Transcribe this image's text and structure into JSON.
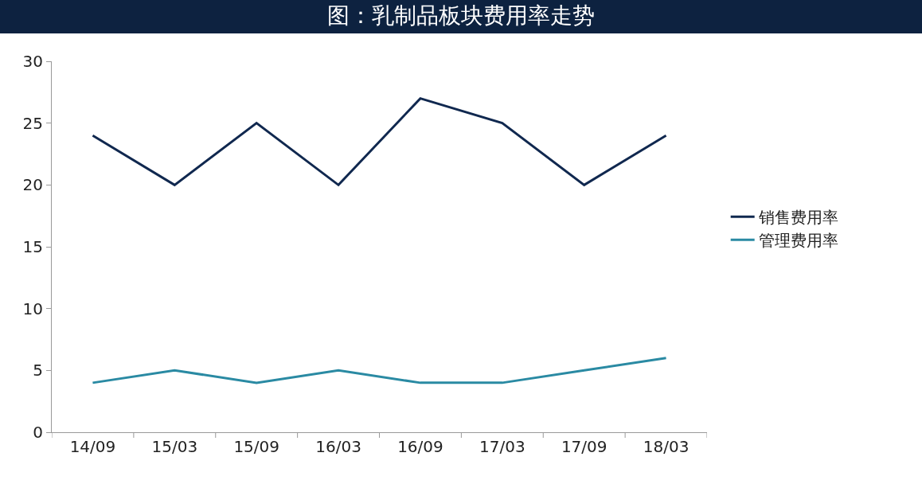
{
  "chart_data": {
    "type": "line",
    "title": "图：乳制品板块费用率走势",
    "categories": [
      "14/09",
      "15/03",
      "15/09",
      "16/03",
      "16/09",
      "17/03",
      "17/09",
      "18/03"
    ],
    "series": [
      {
        "name": "销售费用率",
        "color": "#10284f",
        "values": [
          24,
          20,
          25,
          20,
          27,
          25,
          20,
          24
        ]
      },
      {
        "name": "管理费用率",
        "color": "#2a8aa3",
        "values": [
          4,
          5,
          4,
          5,
          4,
          4,
          5,
          6
        ]
      }
    ],
    "ylim": [
      0,
      30
    ],
    "yticks": [
      0,
      5,
      10,
      15,
      20,
      25,
      30
    ],
    "legend": "right",
    "marker": "none",
    "line_style": "solid"
  }
}
